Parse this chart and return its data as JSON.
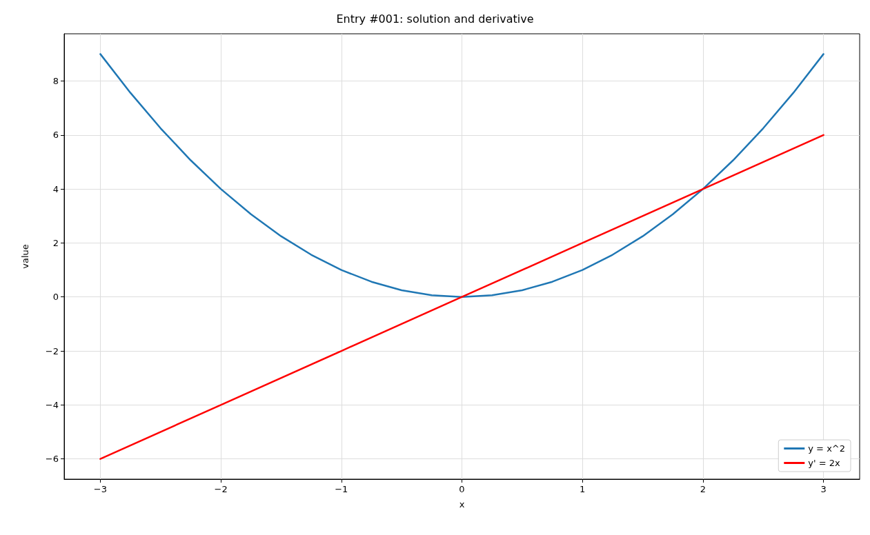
{
  "chart_data": {
    "type": "line",
    "title": "Entry #001: solution and derivative",
    "xlabel": "x",
    "ylabel": "value",
    "xlim": [
      -3.3,
      3.3
    ],
    "ylim": [
      -6.75,
      9.75
    ],
    "xticks": [
      {
        "value": -3,
        "label": "−3"
      },
      {
        "value": -2,
        "label": "−2"
      },
      {
        "value": -1,
        "label": "−1"
      },
      0,
      1,
      2,
      3
    ],
    "yticks": [
      {
        "value": -6,
        "label": "−6"
      },
      {
        "value": -4,
        "label": "−4"
      },
      {
        "value": -2,
        "label": "−2"
      },
      0,
      2,
      4,
      6,
      8
    ],
    "grid": true,
    "legend": "bottom right",
    "marker": "none",
    "line_style": "solid",
    "series": [
      {
        "name": "y = x^2",
        "color": "#1f77b4",
        "x": [
          -3,
          -2.75,
          -2.5,
          -2.25,
          -2,
          -1.75,
          -1.5,
          -1.25,
          -1,
          -0.75,
          -0.5,
          -0.25,
          0,
          0.25,
          0.5,
          0.75,
          1,
          1.25,
          1.5,
          1.75,
          2,
          2.25,
          2.5,
          2.75,
          3
        ],
        "values": [
          9,
          7.5625,
          6.25,
          5.0625,
          4,
          3.0625,
          2.25,
          1.5625,
          1,
          0.5625,
          0.25,
          0.0625,
          0,
          0.0625,
          0.25,
          0.5625,
          1,
          1.5625,
          2.25,
          3.0625,
          4,
          5.0625,
          6.25,
          7.5625,
          9
        ]
      },
      {
        "name": "y' = 2x",
        "color": "#ff0000",
        "x": [
          -3,
          -2,
          -1,
          0,
          1,
          2,
          3
        ],
        "values": [
          -6,
          -4,
          -2,
          0,
          2,
          4,
          6
        ]
      }
    ]
  }
}
